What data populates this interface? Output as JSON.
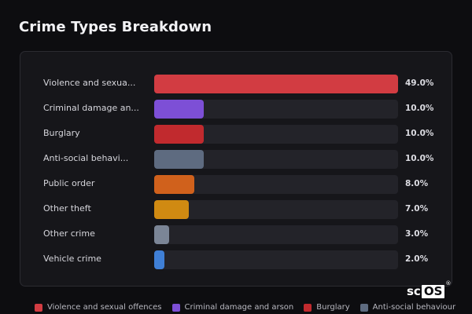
{
  "title": "Crime Types Breakdown",
  "chart_data": {
    "type": "bar",
    "orientation": "horizontal",
    "categories": [
      "Violence and sexua...",
      "Criminal damage an...",
      "Burglary",
      "Anti-social behavi...",
      "Public order",
      "Other theft",
      "Other crime",
      "Vehicle crime"
    ],
    "values": [
      49.0,
      10.0,
      10.0,
      10.0,
      8.0,
      7.0,
      3.0,
      2.0
    ],
    "value_labels": [
      "49.0%",
      "10.0%",
      "10.0%",
      "10.0%",
      "8.0%",
      "7.0%",
      "3.0%",
      "2.0%"
    ],
    "colors": [
      "#d23c42",
      "#7d4fd6",
      "#c12a2e",
      "#5e6b80",
      "#d0611c",
      "#d08a12",
      "#7b8596",
      "#3f7fd6"
    ],
    "xlim": [
      0,
      49.0
    ],
    "unit": "%",
    "legend_placement": "bottom",
    "grid": false
  },
  "legend": [
    {
      "label": "Violence and sexual offences",
      "color": "#d23c42"
    },
    {
      "label": "Criminal damage and arson",
      "color": "#7d4fd6"
    },
    {
      "label": "Burglary",
      "color": "#c12a2e"
    },
    {
      "label": "Anti-social behaviour",
      "color": "#5e6b80"
    }
  ],
  "watermark": {
    "prefix": "sc",
    "boxed": "OS",
    "mark": "®"
  }
}
